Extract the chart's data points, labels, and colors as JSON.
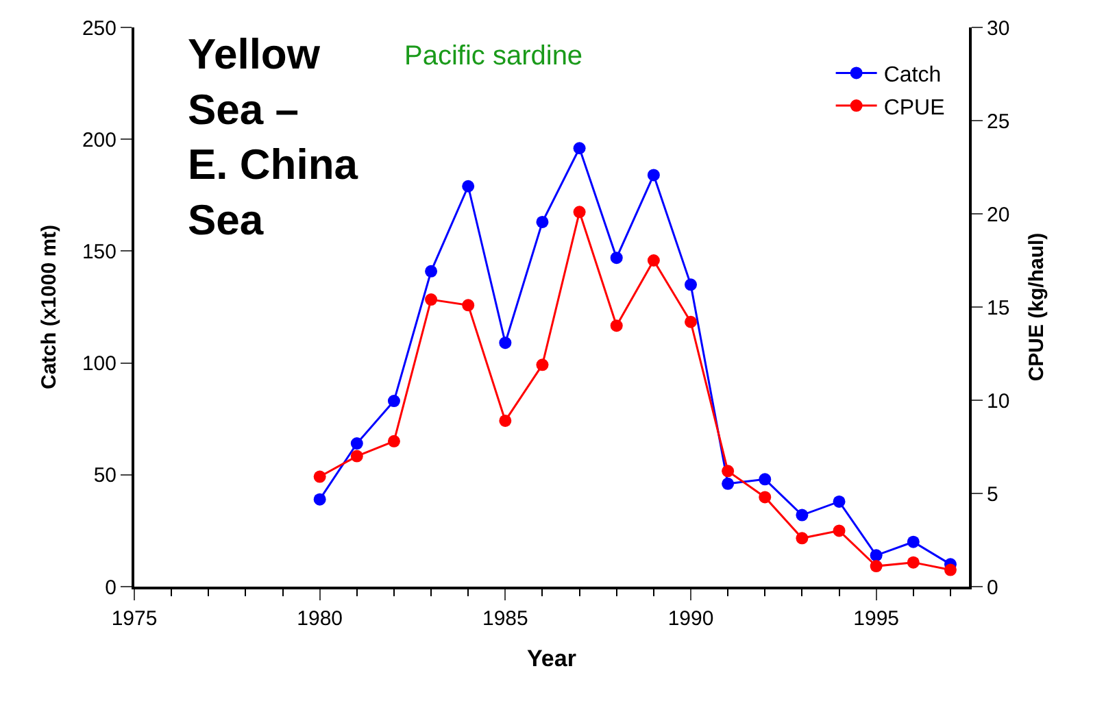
{
  "chart_data": {
    "type": "line",
    "title": "Yellow Sea – E. China Sea",
    "subtitle": "Pacific sardine",
    "xlabel": "Year",
    "ylabel": "Catch (x1000 mt)",
    "y2label": "CPUE (kg/haul)",
    "x": [
      1980,
      1981,
      1982,
      1983,
      1984,
      1985,
      1986,
      1987,
      1988,
      1989,
      1990,
      1991,
      1992,
      1993,
      1994,
      1995,
      1996,
      1997
    ],
    "series": [
      {
        "name": "Catch",
        "color": "#0000ff",
        "values": [
          39,
          64,
          83,
          141,
          179,
          109,
          163,
          196,
          147,
          184,
          135,
          46,
          48,
          32,
          38,
          14,
          20,
          10
        ]
      },
      {
        "name": "CPUE",
        "color": "#ff0000",
        "axis": "y2",
        "values": [
          5.9,
          7.0,
          7.8,
          15.4,
          15.1,
          8.9,
          11.9,
          20.1,
          14.0,
          17.5,
          14.2,
          6.2,
          4.8,
          2.6,
          3.0,
          1.1,
          1.3,
          0.9
        ]
      }
    ],
    "xlim": [
      1975,
      1997.5
    ],
    "xticks": [
      1975,
      1980,
      1985,
      1990,
      1995
    ],
    "ylim": [
      0,
      250
    ],
    "yticks": [
      0,
      50,
      100,
      150,
      200,
      250
    ],
    "y2lim": [
      0,
      30
    ],
    "y2ticks": [
      0,
      5,
      10,
      15,
      20,
      25,
      30
    ],
    "legend": "top right",
    "marker": "circle",
    "line_style": "solid"
  }
}
